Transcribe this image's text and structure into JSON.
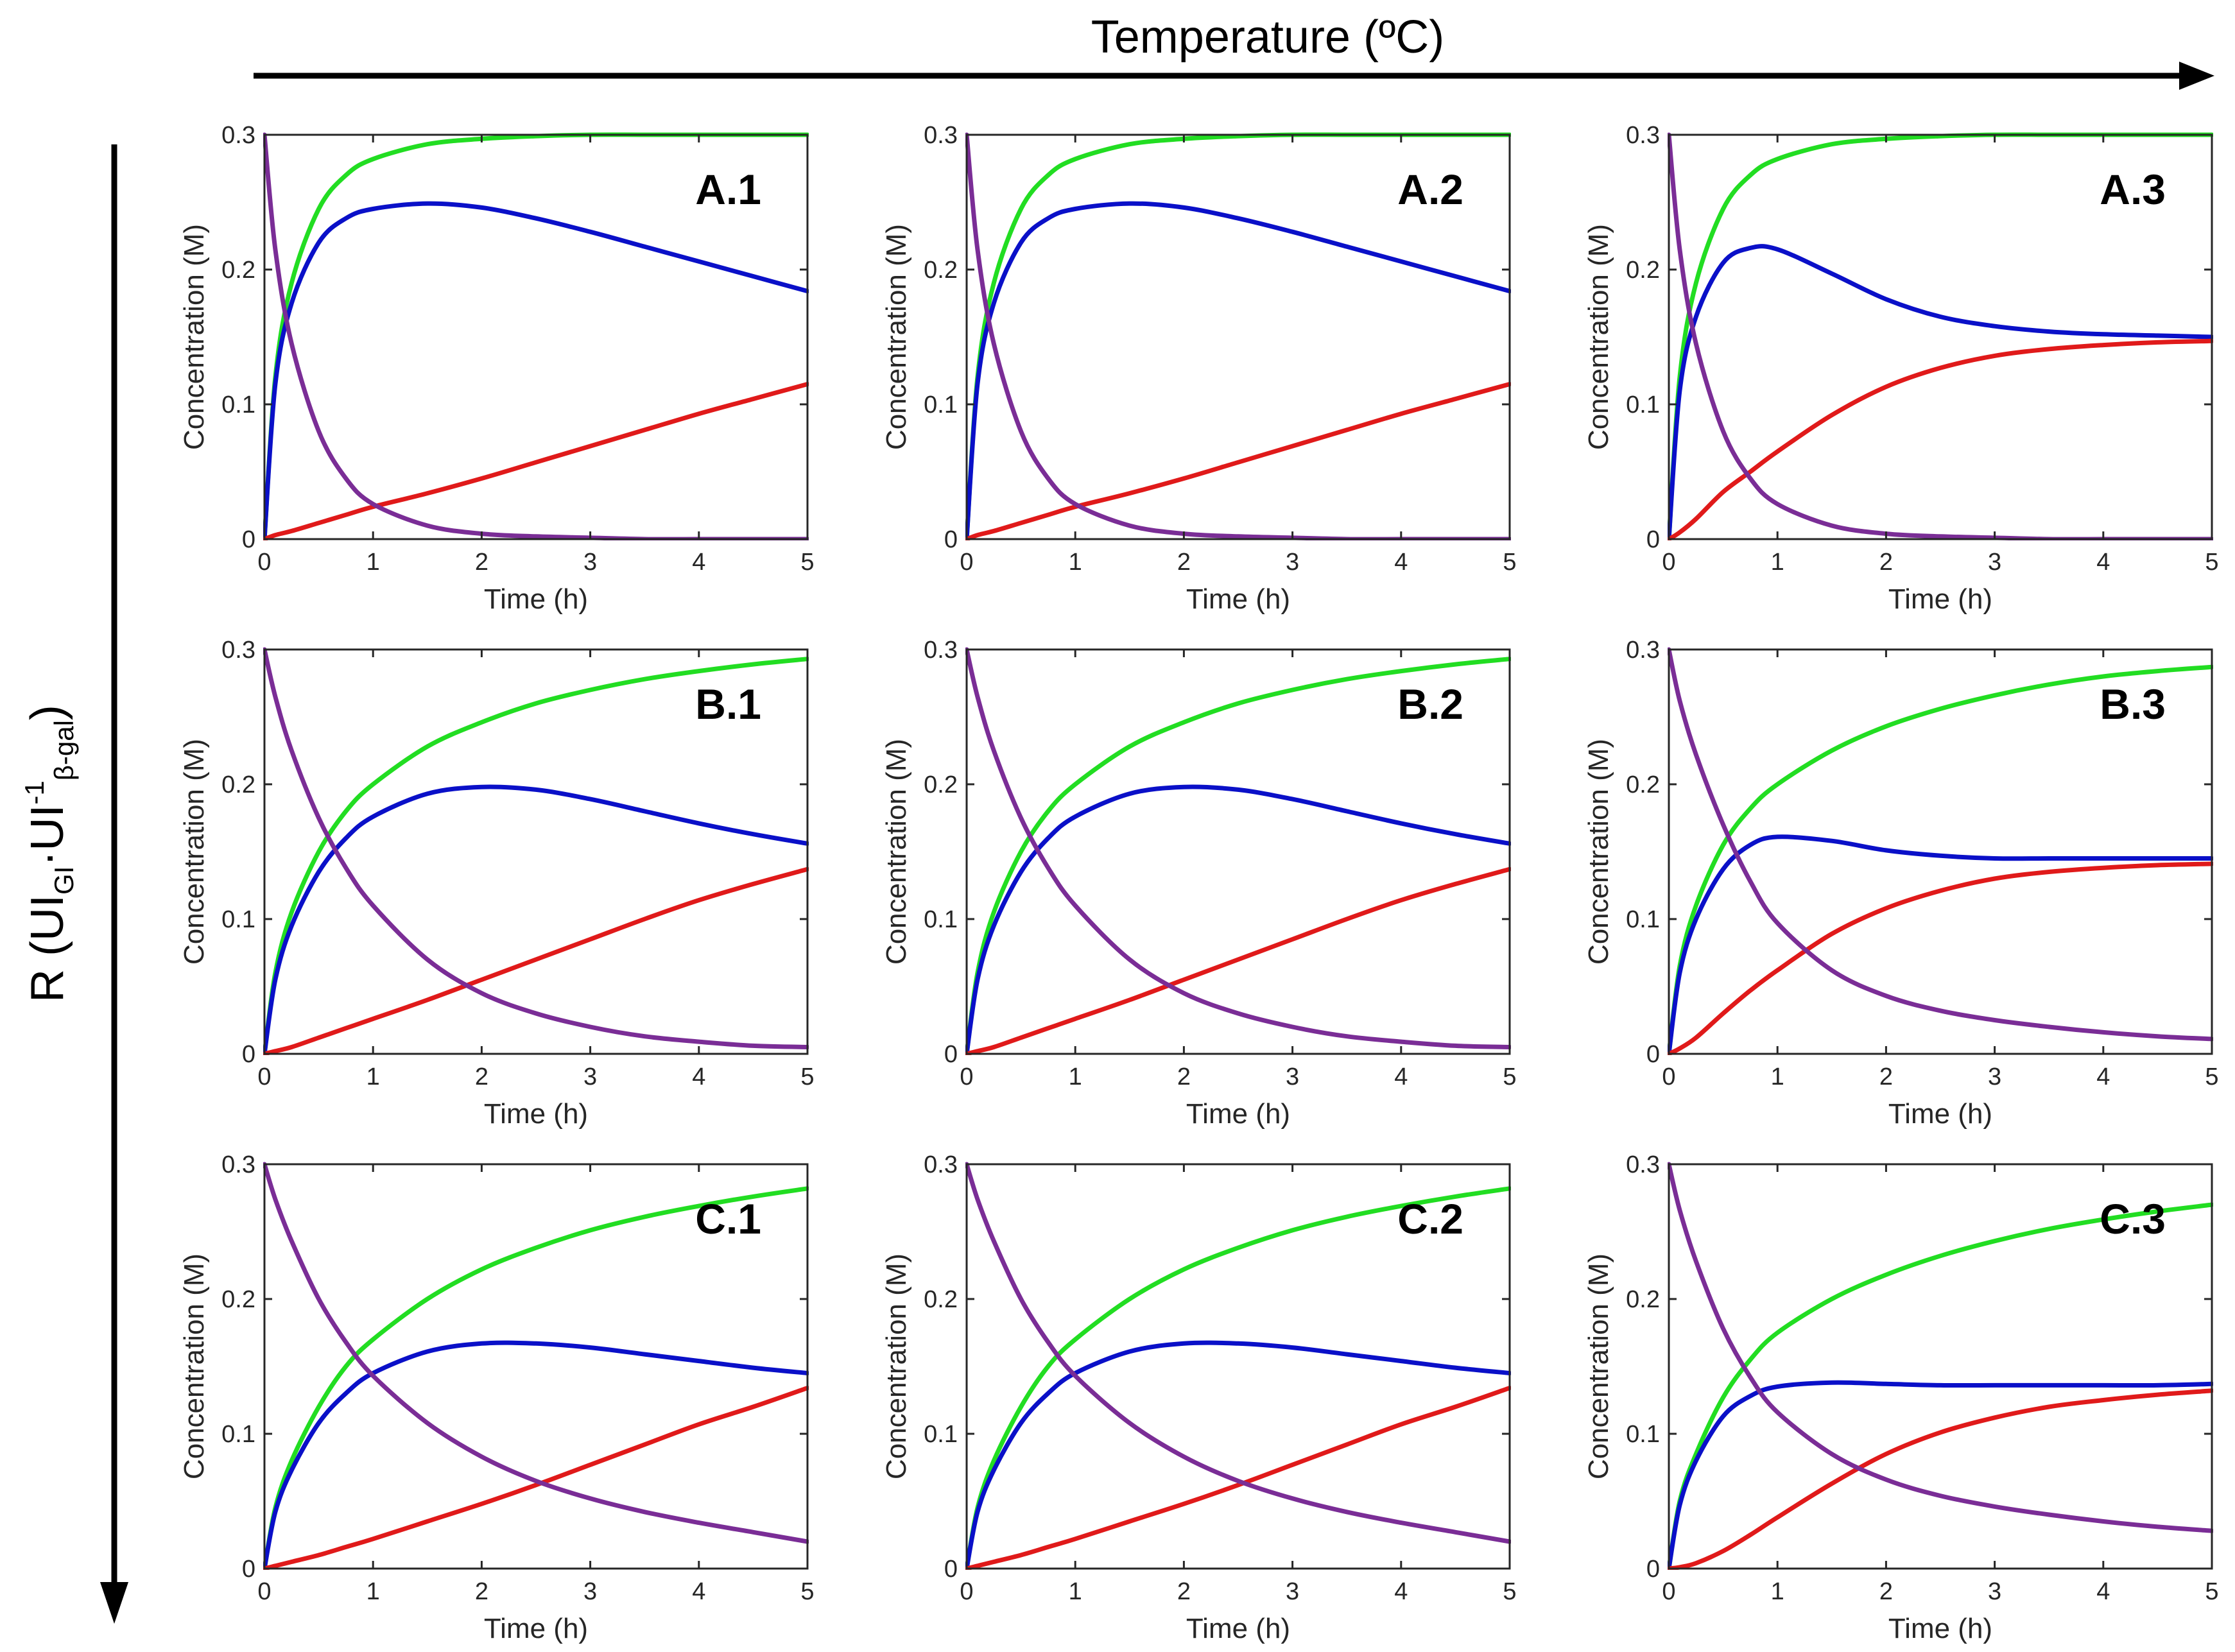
{
  "figure": {
    "top_axis_label": "Temperature (ºC)",
    "left_axis_label": {
      "prefix": "R (UI",
      "sub1": "GI",
      "middle": "·UI",
      "sup": "-1",
      "sub2": "β-gal",
      "suffix": ")"
    }
  },
  "colors": {
    "green": "#22dd22",
    "blue": "#0a10c8",
    "red": "#e01a1a",
    "purple": "#7a2d96",
    "axis": "#262626"
  },
  "chart_data": [
    {
      "id": "A.1",
      "type": "line",
      "xlabel": "Time (h)",
      "ylabel": "Concentration (M)",
      "xlim": [
        0,
        5
      ],
      "ylim": [
        0,
        0.3
      ],
      "xticks": [
        "0",
        "1",
        "2",
        "3",
        "4",
        "5"
      ],
      "yticks": [
        "0",
        "0.1",
        "0.2",
        "0.3"
      ],
      "x": [
        0,
        0.1,
        0.25,
        0.5,
        0.75,
        1,
        1.5,
        2,
        2.5,
        3,
        3.5,
        4,
        4.5,
        5
      ],
      "series": [
        {
          "name": "green",
          "color": "#22dd22",
          "values": [
            0,
            0.12,
            0.19,
            0.245,
            0.27,
            0.282,
            0.293,
            0.297,
            0.299,
            0.3,
            0.3,
            0.3,
            0.3,
            0.3
          ]
        },
        {
          "name": "blue",
          "color": "#0a10c8",
          "values": [
            0,
            0.115,
            0.175,
            0.22,
            0.238,
            0.245,
            0.249,
            0.246,
            0.238,
            0.228,
            0.217,
            0.206,
            0.195,
            0.184
          ]
        },
        {
          "name": "red",
          "color": "#e01a1a",
          "values": [
            0,
            0.003,
            0.006,
            0.012,
            0.018,
            0.024,
            0.034,
            0.045,
            0.057,
            0.069,
            0.081,
            0.093,
            0.104,
            0.115
          ]
        },
        {
          "name": "purple",
          "color": "#7a2d96",
          "values": [
            0.3,
            0.215,
            0.145,
            0.08,
            0.045,
            0.026,
            0.01,
            0.004,
            0.002,
            0.001,
            0,
            0,
            0,
            0
          ]
        }
      ]
    },
    {
      "id": "A.2",
      "type": "line",
      "xlabel": "Time (h)",
      "ylabel": "Concentration (M)",
      "xlim": [
        0,
        5
      ],
      "ylim": [
        0,
        0.3
      ],
      "xticks": [
        "0",
        "1",
        "2",
        "3",
        "4",
        "5"
      ],
      "yticks": [
        "0",
        "0.1",
        "0.2",
        "0.3"
      ],
      "x": [
        0,
        0.1,
        0.25,
        0.5,
        0.75,
        1,
        1.5,
        2,
        2.5,
        3,
        3.5,
        4,
        4.5,
        5
      ],
      "series": [
        {
          "name": "green",
          "color": "#22dd22",
          "values": [
            0,
            0.12,
            0.19,
            0.245,
            0.27,
            0.282,
            0.293,
            0.297,
            0.299,
            0.3,
            0.3,
            0.3,
            0.3,
            0.3
          ]
        },
        {
          "name": "blue",
          "color": "#0a10c8",
          "values": [
            0,
            0.115,
            0.175,
            0.22,
            0.238,
            0.245,
            0.249,
            0.246,
            0.238,
            0.228,
            0.217,
            0.206,
            0.195,
            0.184
          ]
        },
        {
          "name": "red",
          "color": "#e01a1a",
          "values": [
            0,
            0.003,
            0.006,
            0.012,
            0.018,
            0.024,
            0.034,
            0.045,
            0.057,
            0.069,
            0.081,
            0.093,
            0.104,
            0.115
          ]
        },
        {
          "name": "purple",
          "color": "#7a2d96",
          "values": [
            0.3,
            0.215,
            0.145,
            0.08,
            0.045,
            0.026,
            0.01,
            0.004,
            0.002,
            0.001,
            0,
            0,
            0,
            0
          ]
        }
      ]
    },
    {
      "id": "A.3",
      "type": "line",
      "xlabel": "Time (h)",
      "ylabel": "Concentration (M)",
      "xlim": [
        0,
        5
      ],
      "ylim": [
        0,
        0.3
      ],
      "xticks": [
        "0",
        "1",
        "2",
        "3",
        "4",
        "5"
      ],
      "yticks": [
        "0",
        "0.1",
        "0.2",
        "0.3"
      ],
      "x": [
        0,
        0.1,
        0.25,
        0.5,
        0.75,
        1,
        1.5,
        2,
        2.5,
        3,
        3.5,
        4,
        4.5,
        5
      ],
      "series": [
        {
          "name": "green",
          "color": "#22dd22",
          "values": [
            0,
            0.12,
            0.19,
            0.245,
            0.27,
            0.282,
            0.293,
            0.297,
            0.299,
            0.3,
            0.3,
            0.3,
            0.3,
            0.3
          ]
        },
        {
          "name": "blue",
          "color": "#0a10c8",
          "values": [
            0,
            0.11,
            0.165,
            0.205,
            0.216,
            0.215,
            0.197,
            0.178,
            0.165,
            0.158,
            0.154,
            0.152,
            0.151,
            0.15
          ]
        },
        {
          "name": "red",
          "color": "#e01a1a",
          "values": [
            0,
            0.005,
            0.015,
            0.035,
            0.05,
            0.065,
            0.092,
            0.113,
            0.127,
            0.136,
            0.141,
            0.144,
            0.146,
            0.147
          ]
        },
        {
          "name": "purple",
          "color": "#7a2d96",
          "values": [
            0.3,
            0.215,
            0.145,
            0.08,
            0.045,
            0.026,
            0.01,
            0.004,
            0.002,
            0.001,
            0,
            0,
            0,
            0
          ]
        }
      ]
    },
    {
      "id": "B.1",
      "type": "line",
      "xlabel": "Time (h)",
      "ylabel": "Concentration (M)",
      "xlim": [
        0,
        5
      ],
      "ylim": [
        0,
        0.3
      ],
      "xticks": [
        "0",
        "1",
        "2",
        "3",
        "4",
        "5"
      ],
      "yticks": [
        "0",
        "0.1",
        "0.2",
        "0.3"
      ],
      "x": [
        0,
        0.1,
        0.25,
        0.5,
        0.75,
        1,
        1.5,
        2,
        2.5,
        3,
        3.5,
        4,
        4.5,
        5
      ],
      "series": [
        {
          "name": "green",
          "color": "#22dd22",
          "values": [
            0,
            0.06,
            0.105,
            0.15,
            0.18,
            0.2,
            0.228,
            0.246,
            0.26,
            0.27,
            0.278,
            0.284,
            0.289,
            0.293
          ]
        },
        {
          "name": "blue",
          "color": "#0a10c8",
          "values": [
            0,
            0.055,
            0.095,
            0.135,
            0.16,
            0.176,
            0.193,
            0.198,
            0.196,
            0.189,
            0.18,
            0.171,
            0.163,
            0.156
          ]
        },
        {
          "name": "red",
          "color": "#e01a1a",
          "values": [
            0,
            0.002,
            0.005,
            0.012,
            0.019,
            0.026,
            0.04,
            0.055,
            0.07,
            0.085,
            0.1,
            0.114,
            0.126,
            0.137
          ]
        },
        {
          "name": "purple",
          "color": "#7a2d96",
          "values": [
            0.3,
            0.265,
            0.225,
            0.175,
            0.138,
            0.11,
            0.07,
            0.045,
            0.03,
            0.02,
            0.013,
            0.009,
            0.006,
            0.005
          ]
        }
      ]
    },
    {
      "id": "B.2",
      "type": "line",
      "xlabel": "Time (h)",
      "ylabel": "Concentration (M)",
      "xlim": [
        0,
        5
      ],
      "ylim": [
        0,
        0.3
      ],
      "xticks": [
        "0",
        "1",
        "2",
        "3",
        "4",
        "5"
      ],
      "yticks": [
        "0",
        "0.1",
        "0.2",
        "0.3"
      ],
      "x": [
        0,
        0.1,
        0.25,
        0.5,
        0.75,
        1,
        1.5,
        2,
        2.5,
        3,
        3.5,
        4,
        4.5,
        5
      ],
      "series": [
        {
          "name": "green",
          "color": "#22dd22",
          "values": [
            0,
            0.06,
            0.105,
            0.15,
            0.18,
            0.2,
            0.228,
            0.246,
            0.26,
            0.27,
            0.278,
            0.284,
            0.289,
            0.293
          ]
        },
        {
          "name": "blue",
          "color": "#0a10c8",
          "values": [
            0,
            0.055,
            0.095,
            0.135,
            0.16,
            0.176,
            0.193,
            0.198,
            0.196,
            0.189,
            0.18,
            0.171,
            0.163,
            0.156
          ]
        },
        {
          "name": "red",
          "color": "#e01a1a",
          "values": [
            0,
            0.002,
            0.005,
            0.012,
            0.019,
            0.026,
            0.04,
            0.055,
            0.07,
            0.085,
            0.1,
            0.114,
            0.126,
            0.137
          ]
        },
        {
          "name": "purple",
          "color": "#7a2d96",
          "values": [
            0.3,
            0.265,
            0.225,
            0.175,
            0.138,
            0.11,
            0.07,
            0.045,
            0.03,
            0.02,
            0.013,
            0.009,
            0.006,
            0.005
          ]
        }
      ]
    },
    {
      "id": "B.3",
      "type": "line",
      "xlabel": "Time (h)",
      "ylabel": "Concentration (M)",
      "xlim": [
        0,
        5
      ],
      "ylim": [
        0,
        0.3
      ],
      "xticks": [
        "0",
        "1",
        "2",
        "3",
        "4",
        "5"
      ],
      "yticks": [
        "0",
        "0.1",
        "0.2",
        "0.3"
      ],
      "x": [
        0,
        0.1,
        0.25,
        0.5,
        0.75,
        1,
        1.5,
        2,
        2.5,
        3,
        3.5,
        4,
        4.5,
        5
      ],
      "series": [
        {
          "name": "green",
          "color": "#22dd22",
          "values": [
            0,
            0.065,
            0.11,
            0.155,
            0.182,
            0.2,
            0.225,
            0.243,
            0.256,
            0.266,
            0.274,
            0.28,
            0.284,
            0.287
          ]
        },
        {
          "name": "blue",
          "color": "#0a10c8",
          "values": [
            0,
            0.06,
            0.1,
            0.137,
            0.155,
            0.161,
            0.158,
            0.151,
            0.147,
            0.145,
            0.145,
            0.145,
            0.145,
            0.145
          ]
        },
        {
          "name": "red",
          "color": "#e01a1a",
          "values": [
            0,
            0.004,
            0.012,
            0.03,
            0.047,
            0.062,
            0.089,
            0.108,
            0.121,
            0.13,
            0.135,
            0.138,
            0.14,
            0.141
          ]
        },
        {
          "name": "purple",
          "color": "#7a2d96",
          "values": [
            0.3,
            0.262,
            0.222,
            0.17,
            0.128,
            0.097,
            0.062,
            0.043,
            0.032,
            0.025,
            0.02,
            0.016,
            0.013,
            0.011
          ]
        }
      ]
    },
    {
      "id": "C.1",
      "type": "line",
      "xlabel": "Time (h)",
      "ylabel": "Concentration (M)",
      "xlim": [
        0,
        5
      ],
      "ylim": [
        0,
        0.3
      ],
      "xticks": [
        "0",
        "1",
        "2",
        "3",
        "4",
        "5"
      ],
      "yticks": [
        "0",
        "0.1",
        "0.2",
        "0.3"
      ],
      "x": [
        0,
        0.1,
        0.25,
        0.5,
        0.75,
        1,
        1.5,
        2,
        2.5,
        3,
        3.5,
        4,
        4.5,
        5
      ],
      "series": [
        {
          "name": "green",
          "color": "#22dd22",
          "values": [
            0,
            0.045,
            0.08,
            0.12,
            0.15,
            0.17,
            0.2,
            0.222,
            0.238,
            0.251,
            0.261,
            0.269,
            0.276,
            0.282
          ]
        },
        {
          "name": "blue",
          "color": "#0a10c8",
          "values": [
            0,
            0.042,
            0.073,
            0.108,
            0.13,
            0.145,
            0.161,
            0.167,
            0.167,
            0.164,
            0.159,
            0.154,
            0.149,
            0.145
          ]
        },
        {
          "name": "red",
          "color": "#e01a1a",
          "values": [
            0,
            0.002,
            0.005,
            0.01,
            0.016,
            0.022,
            0.035,
            0.048,
            0.062,
            0.077,
            0.092,
            0.107,
            0.12,
            0.134
          ]
        },
        {
          "name": "purple",
          "color": "#7a2d96",
          "values": [
            0.3,
            0.274,
            0.243,
            0.2,
            0.168,
            0.143,
            0.108,
            0.083,
            0.065,
            0.052,
            0.042,
            0.034,
            0.027,
            0.02
          ]
        }
      ]
    },
    {
      "id": "C.2",
      "type": "line",
      "xlabel": "Time (h)",
      "ylabel": "Concentration (M)",
      "xlim": [
        0,
        5
      ],
      "ylim": [
        0,
        0.3
      ],
      "xticks": [
        "0",
        "1",
        "2",
        "3",
        "4",
        "5"
      ],
      "yticks": [
        "0",
        "0.1",
        "0.2",
        "0.3"
      ],
      "x": [
        0,
        0.1,
        0.25,
        0.5,
        0.75,
        1,
        1.5,
        2,
        2.5,
        3,
        3.5,
        4,
        4.5,
        5
      ],
      "series": [
        {
          "name": "green",
          "color": "#22dd22",
          "values": [
            0,
            0.045,
            0.08,
            0.12,
            0.15,
            0.17,
            0.2,
            0.222,
            0.238,
            0.251,
            0.261,
            0.269,
            0.276,
            0.282
          ]
        },
        {
          "name": "blue",
          "color": "#0a10c8",
          "values": [
            0,
            0.042,
            0.073,
            0.108,
            0.13,
            0.145,
            0.161,
            0.167,
            0.167,
            0.164,
            0.159,
            0.154,
            0.149,
            0.145
          ]
        },
        {
          "name": "red",
          "color": "#e01a1a",
          "values": [
            0,
            0.002,
            0.005,
            0.01,
            0.016,
            0.022,
            0.035,
            0.048,
            0.062,
            0.077,
            0.092,
            0.107,
            0.12,
            0.134
          ]
        },
        {
          "name": "purple",
          "color": "#7a2d96",
          "values": [
            0.3,
            0.274,
            0.243,
            0.2,
            0.168,
            0.143,
            0.108,
            0.083,
            0.065,
            0.052,
            0.042,
            0.034,
            0.027,
            0.02
          ]
        }
      ]
    },
    {
      "id": "C.3",
      "type": "line",
      "xlabel": "Time (h)",
      "ylabel": "Concentration (M)",
      "xlim": [
        0,
        5
      ],
      "ylim": [
        0,
        0.3
      ],
      "xticks": [
        "0",
        "1",
        "2",
        "3",
        "4",
        "5"
      ],
      "yticks": [
        "0",
        "0.1",
        "0.2",
        "0.3"
      ],
      "x": [
        0,
        0.1,
        0.25,
        0.5,
        0.75,
        1,
        1.5,
        2,
        2.5,
        3,
        3.5,
        4,
        4.5,
        5
      ],
      "series": [
        {
          "name": "green",
          "color": "#22dd22",
          "values": [
            0,
            0.05,
            0.085,
            0.127,
            0.155,
            0.175,
            0.2,
            0.218,
            0.232,
            0.243,
            0.252,
            0.259,
            0.265,
            0.27
          ]
        },
        {
          "name": "blue",
          "color": "#0a10c8",
          "values": [
            0,
            0.047,
            0.08,
            0.113,
            0.128,
            0.135,
            0.138,
            0.137,
            0.136,
            0.136,
            0.136,
            0.136,
            0.136,
            0.137
          ]
        },
        {
          "name": "red",
          "color": "#e01a1a",
          "values": [
            0,
            0.001,
            0.004,
            0.013,
            0.025,
            0.038,
            0.063,
            0.085,
            0.101,
            0.112,
            0.12,
            0.125,
            0.129,
            0.132
          ]
        },
        {
          "name": "purple",
          "color": "#7a2d96",
          "values": [
            0.3,
            0.266,
            0.228,
            0.178,
            0.142,
            0.116,
            0.085,
            0.066,
            0.054,
            0.046,
            0.04,
            0.035,
            0.031,
            0.028
          ]
        }
      ]
    }
  ]
}
